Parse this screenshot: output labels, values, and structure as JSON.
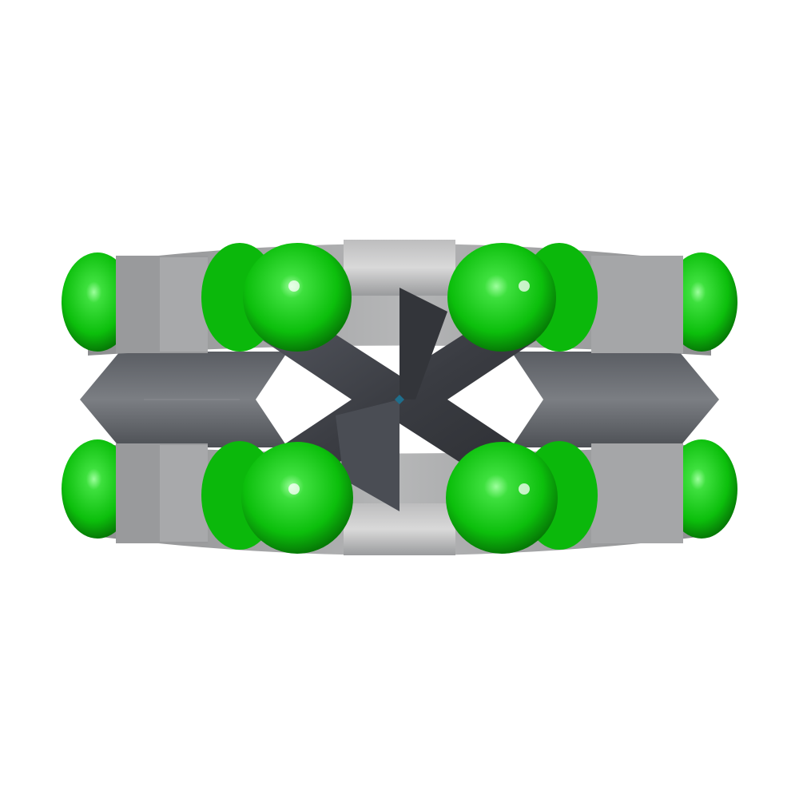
{
  "scene": {
    "subject": "molecule-space-filling-model",
    "background_color": "#ffffff",
    "colors": {
      "chlorine": "#0ec40e",
      "chlorine_highlight": "#7dff7d",
      "chlorine_shadow": "#078a07",
      "carbon_dark": "#3d3f45",
      "carbon_mid": "#6b6e73",
      "carbon_light": "#a9aaac",
      "carbon_highlight": "#e6e6e6",
      "center_marker": "#1f6e8c"
    }
  }
}
